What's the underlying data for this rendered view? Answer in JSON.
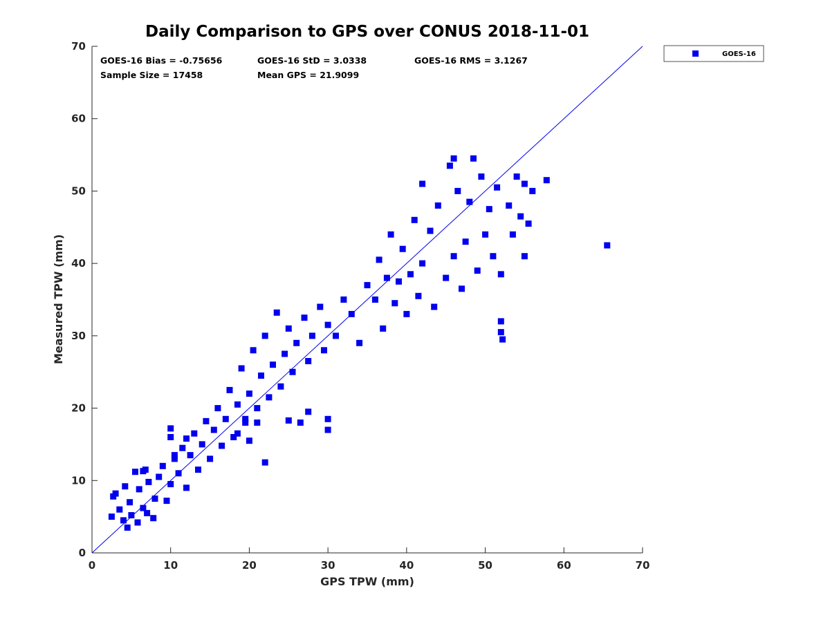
{
  "chart_data": {
    "type": "scatter",
    "title": "Daily Comparison to GPS over CONUS 2018-11-01",
    "xlabel": "GPS TPW (mm)",
    "ylabel": "Measured TPW (mm)",
    "xlim": [
      0,
      70
    ],
    "ylim": [
      0,
      70
    ],
    "xticks": [
      0,
      10,
      20,
      30,
      40,
      50,
      60,
      70
    ],
    "yticks": [
      0,
      10,
      20,
      30,
      40,
      50,
      60,
      70
    ],
    "grid": false,
    "legend_position": "outside-top-right",
    "reference_line": {
      "type": "one-to-one",
      "from": [
        0,
        0
      ],
      "to": [
        70,
        70
      ],
      "color": "#0000ee"
    },
    "annotations": {
      "bias": "GOES-16 Bias = -0.75656",
      "std": "GOES-16 StD = 3.0338",
      "rms": "GOES-16 RMS = 3.1267",
      "sample_size": "Sample Size = 17458",
      "mean_gps": "Mean GPS = 21.9099"
    },
    "series": [
      {
        "name": "GOES-16",
        "color": "#0000ee",
        "marker": "square",
        "sample_size": 17458,
        "mean_x": 21.9099,
        "bias": -0.75656,
        "std": 3.0338,
        "points": [
          [
            2.5,
            5.0
          ],
          [
            2.7,
            7.8
          ],
          [
            3.0,
            8.2
          ],
          [
            3.5,
            6.0
          ],
          [
            4.0,
            4.5
          ],
          [
            4.2,
            9.2
          ],
          [
            4.5,
            3.5
          ],
          [
            4.8,
            7.0
          ],
          [
            5.0,
            5.2
          ],
          [
            5.5,
            11.2
          ],
          [
            5.8,
            4.2
          ],
          [
            6.0,
            8.8
          ],
          [
            6.5,
            6.2
          ],
          [
            6.8,
            11.5
          ],
          [
            7.0,
            5.5
          ],
          [
            7.2,
            9.8
          ],
          [
            7.8,
            4.8
          ],
          [
            8.0,
            7.5
          ],
          [
            8.5,
            10.5
          ],
          [
            9.0,
            12.0
          ],
          [
            9.5,
            7.2
          ],
          [
            10.0,
            9.5
          ],
          [
            10.5,
            13.0
          ],
          [
            11.0,
            11.0
          ],
          [
            11.5,
            14.5
          ],
          [
            12.0,
            9.0
          ],
          [
            12.5,
            13.5
          ],
          [
            13.0,
            16.5
          ],
          [
            13.5,
            11.5
          ],
          [
            14.0,
            15.0
          ],
          [
            14.5,
            18.2
          ],
          [
            15.0,
            13.0
          ],
          [
            15.5,
            17.0
          ],
          [
            16.0,
            20.0
          ],
          [
            16.5,
            14.8
          ],
          [
            17.0,
            18.5
          ],
          [
            17.5,
            22.5
          ],
          [
            18.0,
            16.0
          ],
          [
            18.5,
            20.5
          ],
          [
            19.0,
            25.5
          ],
          [
            19.5,
            18.0
          ],
          [
            20.0,
            22.0
          ],
          [
            20.5,
            28.0
          ],
          [
            21.0,
            20.0
          ],
          [
            21.5,
            24.5
          ],
          [
            22.0,
            30.0
          ],
          [
            22.5,
            21.5
          ],
          [
            23.0,
            26.0
          ],
          [
            23.5,
            33.2
          ],
          [
            24.0,
            23.0
          ],
          [
            24.5,
            27.5
          ],
          [
            25.0,
            31.0
          ],
          [
            25.5,
            25.0
          ],
          [
            26.0,
            29.0
          ],
          [
            27.0,
            32.5
          ],
          [
            27.5,
            26.5
          ],
          [
            28.0,
            30.0
          ],
          [
            29.0,
            34.0
          ],
          [
            29.5,
            28.0
          ],
          [
            30.0,
            31.5
          ],
          [
            31.0,
            30.0
          ],
          [
            32.0,
            35.0
          ],
          [
            33.0,
            33.0
          ],
          [
            34.0,
            29.0
          ],
          [
            35.0,
            37.0
          ],
          [
            36.0,
            35.0
          ],
          [
            36.5,
            40.5
          ],
          [
            37.0,
            31.0
          ],
          [
            37.5,
            38.0
          ],
          [
            38.0,
            44.0
          ],
          [
            38.5,
            34.5
          ],
          [
            39.0,
            37.5
          ],
          [
            39.5,
            42.0
          ],
          [
            40.0,
            33.0
          ],
          [
            40.5,
            38.5
          ],
          [
            41.0,
            46.0
          ],
          [
            41.5,
            35.5
          ],
          [
            42.0,
            40.0
          ],
          [
            43.0,
            44.5
          ],
          [
            43.5,
            34.0
          ],
          [
            44.0,
            48.0
          ],
          [
            45.0,
            38.0
          ],
          [
            45.5,
            53.5
          ],
          [
            46.0,
            41.0
          ],
          [
            46.5,
            50.0
          ],
          [
            47.0,
            36.5
          ],
          [
            47.5,
            43.0
          ],
          [
            48.0,
            48.5
          ],
          [
            49.0,
            39.0
          ],
          [
            49.5,
            52.0
          ],
          [
            50.0,
            44.0
          ],
          [
            50.5,
            47.5
          ],
          [
            51.0,
            41.0
          ],
          [
            51.5,
            50.5
          ],
          [
            52.0,
            38.5
          ],
          [
            52.0,
            32.0
          ],
          [
            52.2,
            29.5
          ],
          [
            52.0,
            30.5
          ],
          [
            53.0,
            48.0
          ],
          [
            53.5,
            44.0
          ],
          [
            54.0,
            52.0
          ],
          [
            54.5,
            46.5
          ],
          [
            55.0,
            51.0
          ],
          [
            55.0,
            41.0
          ],
          [
            55.5,
            45.5
          ],
          [
            56.0,
            50.0
          ],
          [
            57.8,
            51.5
          ],
          [
            65.5,
            42.5
          ],
          [
            42.0,
            51.0
          ],
          [
            46.0,
            54.5
          ],
          [
            48.5,
            54.5
          ],
          [
            19.5,
            18.5
          ],
          [
            21.0,
            18.0
          ],
          [
            25.0,
            18.3
          ],
          [
            26.5,
            18.0
          ],
          [
            27.5,
            19.5
          ],
          [
            30.0,
            18.5
          ],
          [
            30.0,
            17.0
          ],
          [
            18.5,
            16.5
          ],
          [
            20.0,
            15.5
          ],
          [
            22.0,
            12.5
          ],
          [
            10.0,
            16.0
          ],
          [
            10.0,
            17.2
          ],
          [
            10.5,
            13.5
          ],
          [
            6.5,
            11.3
          ],
          [
            12.0,
            15.8
          ]
        ]
      }
    ]
  }
}
